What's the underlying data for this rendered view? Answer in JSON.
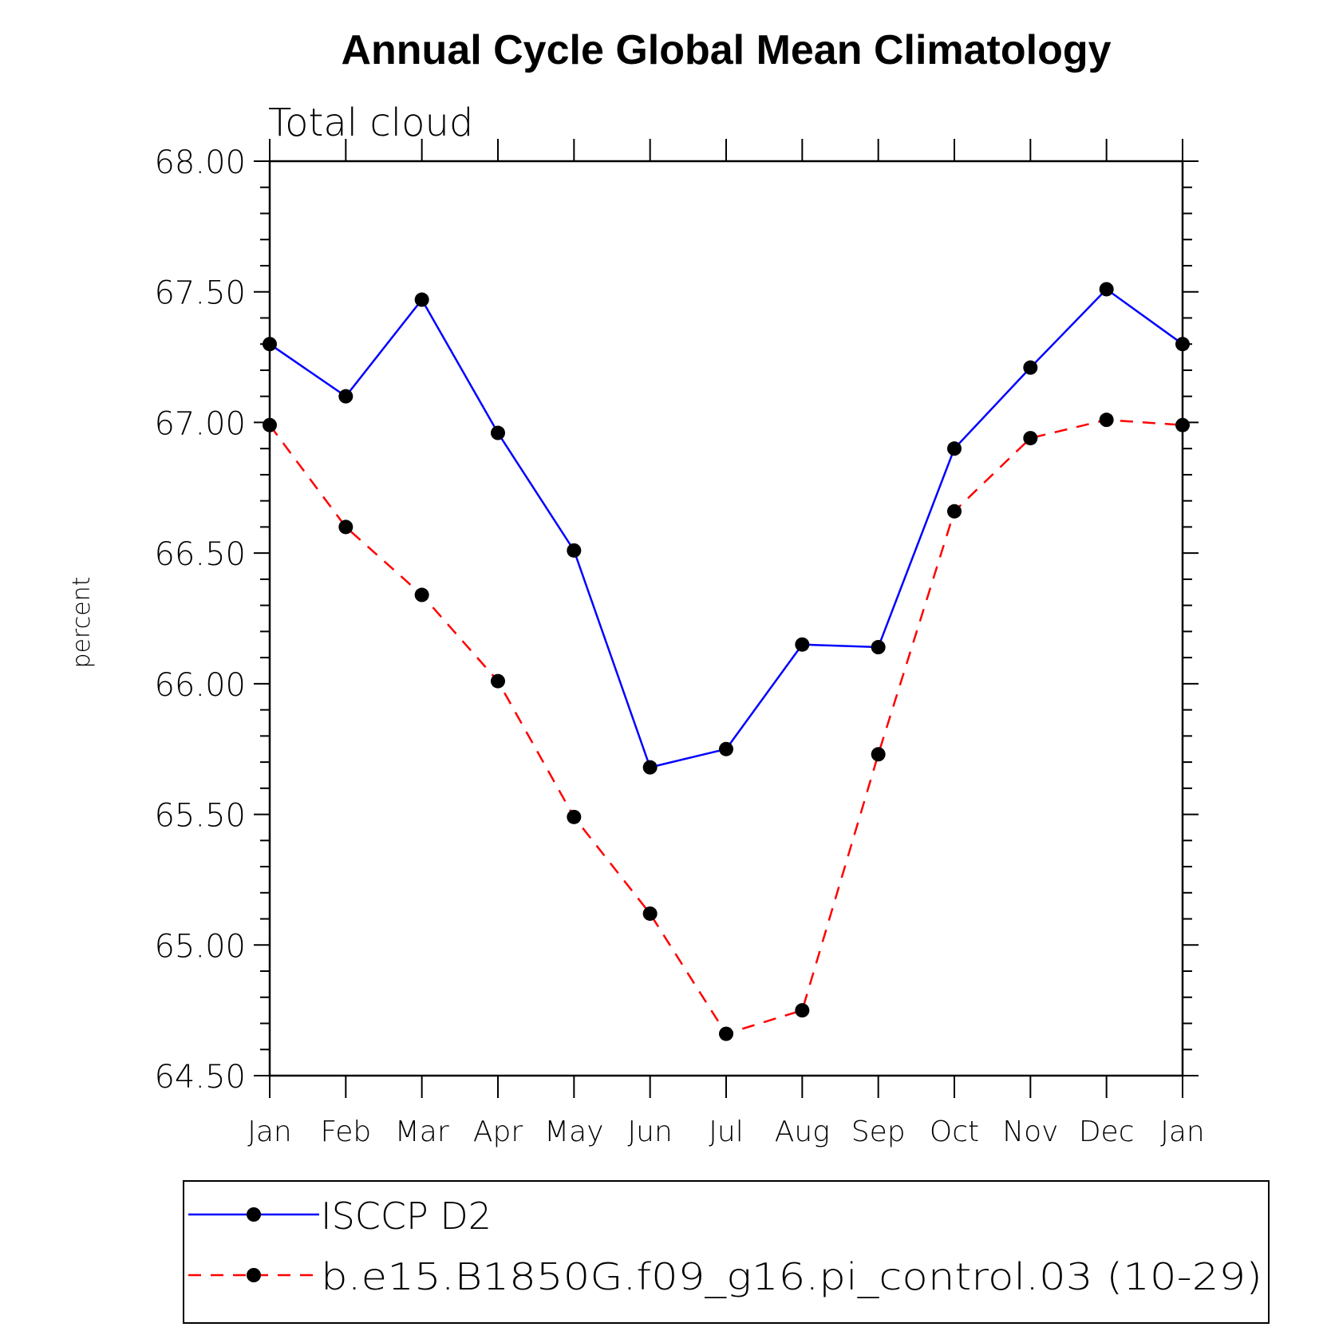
{
  "chart_data": {
    "type": "line",
    "title": "Annual Cycle Global Mean Climatology",
    "subtitle": "Total cloud",
    "xlabel": "",
    "ylabel": "percent",
    "categories": [
      "Jan",
      "Feb",
      "Mar",
      "Apr",
      "May",
      "Jun",
      "Jul",
      "Aug",
      "Sep",
      "Oct",
      "Nov",
      "Dec",
      "Jan"
    ],
    "ylim": [
      64.5,
      68.0
    ],
    "yticks": [
      "64.50",
      "65.00",
      "65.50",
      "66.00",
      "66.50",
      "67.00",
      "67.50",
      "68.00"
    ],
    "grid": false,
    "legend_position": "bottom",
    "series": [
      {
        "name": "ISCCP D2",
        "color": "#0000ff",
        "line_style": "solid",
        "marker": "filled-circle",
        "values": [
          67.3,
          67.1,
          67.47,
          66.96,
          66.51,
          65.68,
          65.75,
          66.15,
          66.14,
          66.9,
          67.21,
          67.51,
          67.3
        ]
      },
      {
        "name": "b.e15.B1850G.f09_g16.pi_control.03 (10-29)",
        "color": "#ff0000",
        "line_style": "dashed",
        "marker": "filled-circle",
        "values": [
          66.99,
          66.6,
          66.34,
          66.01,
          65.49,
          65.12,
          64.66,
          64.75,
          65.73,
          66.66,
          66.94,
          67.01,
          66.99
        ]
      }
    ]
  }
}
